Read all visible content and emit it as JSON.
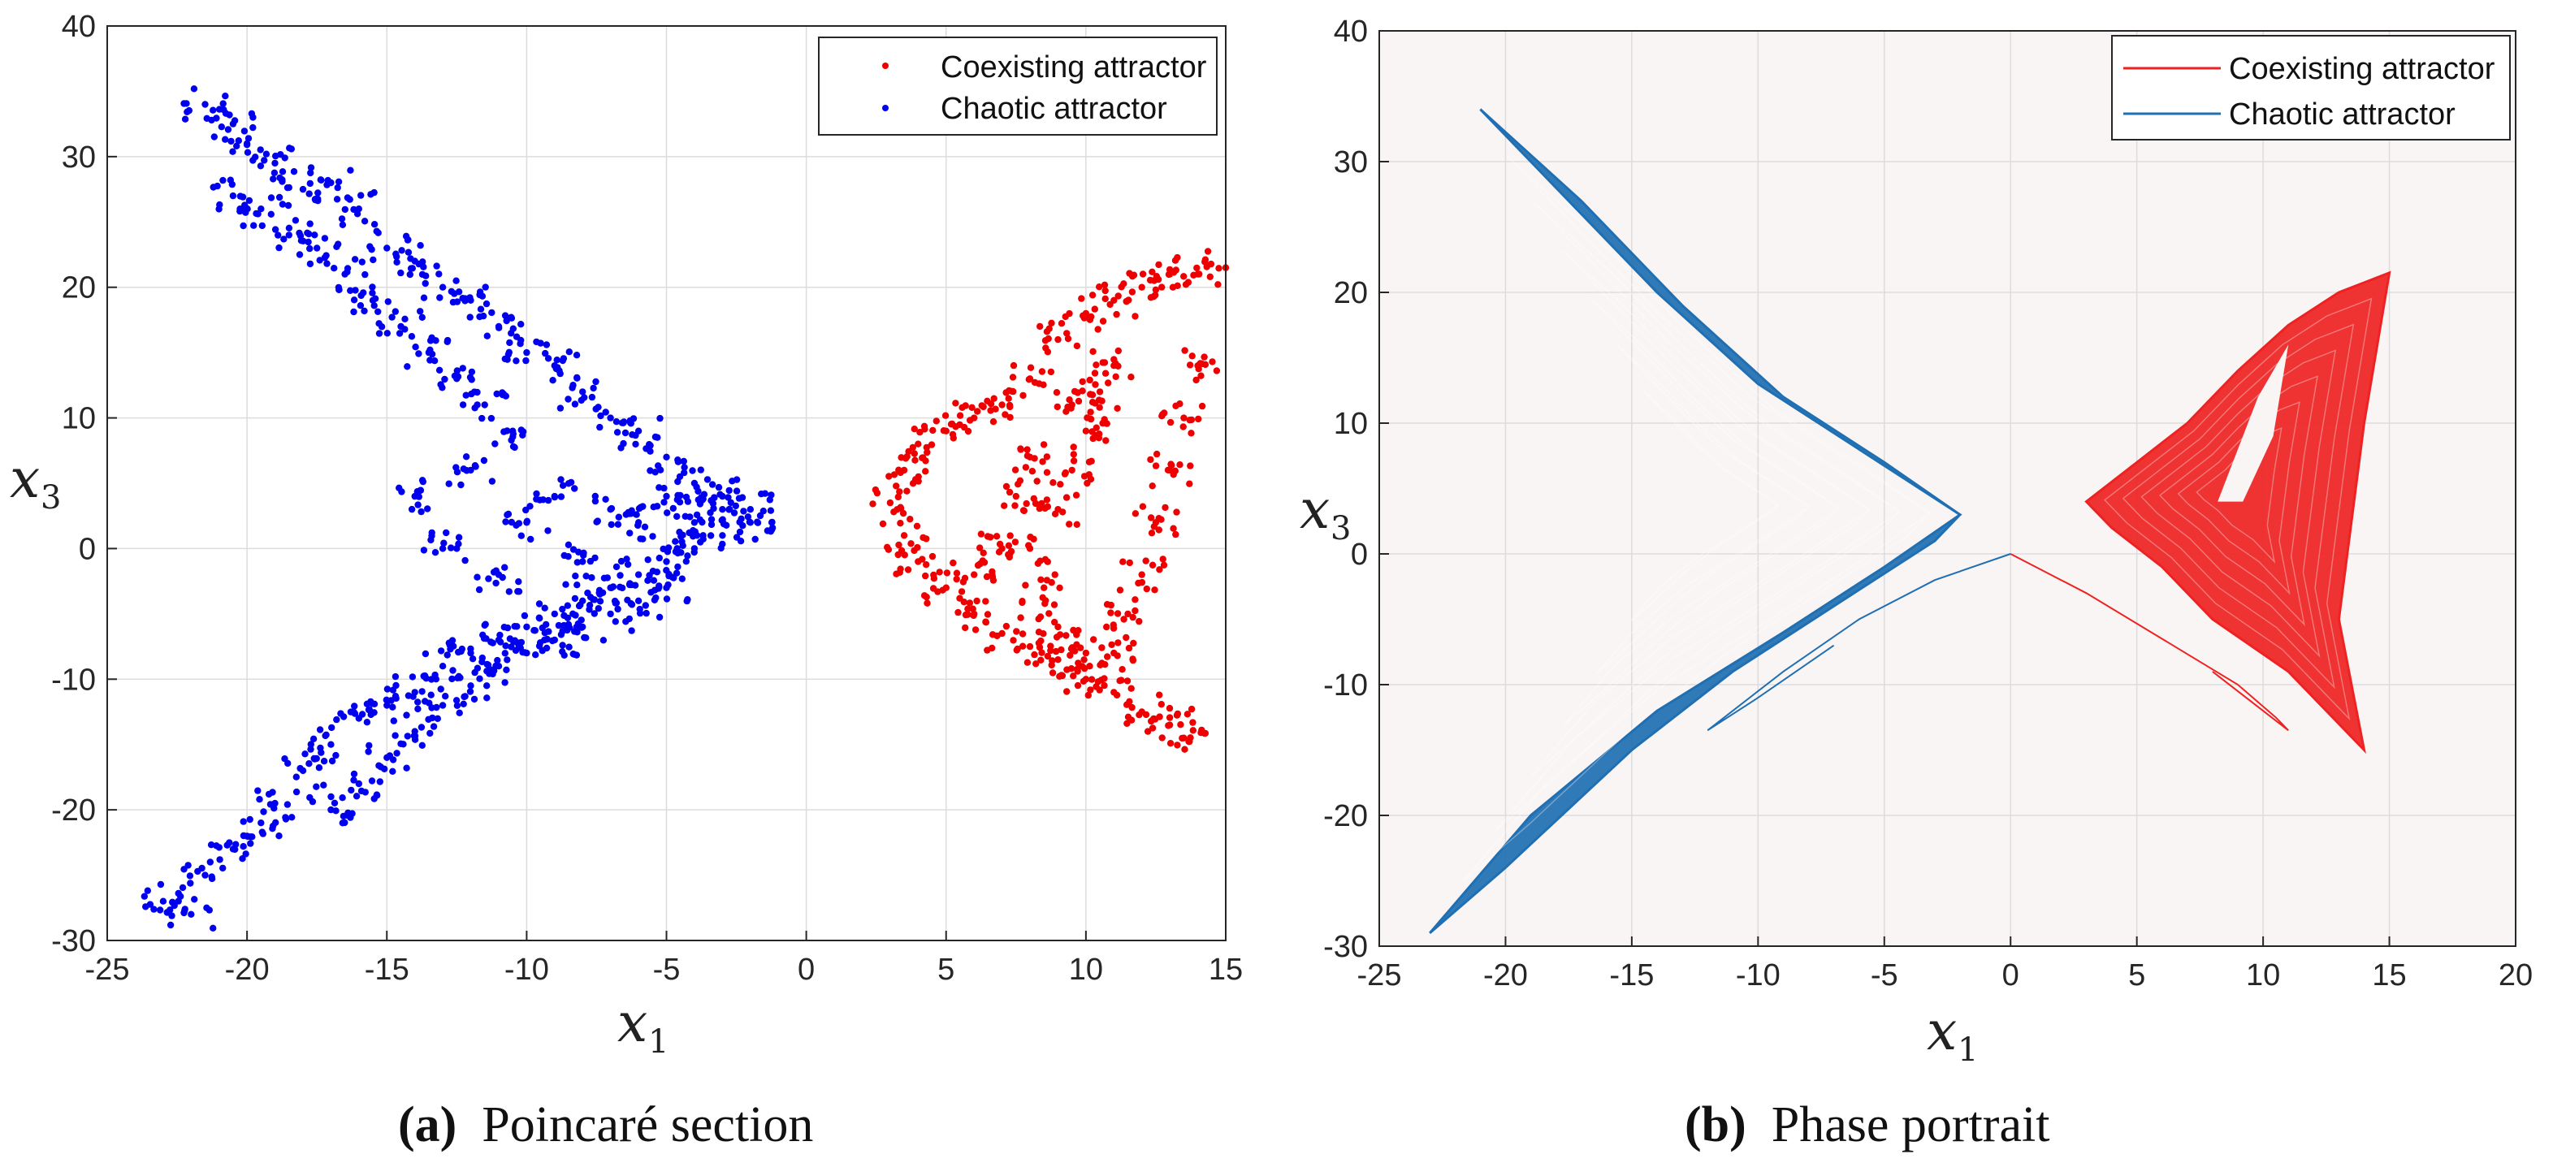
{
  "chart_data": [
    {
      "type": "scatter",
      "title": "",
      "xlabel": "x1",
      "ylabel": "x3",
      "xlim": [
        -25,
        15
      ],
      "ylim": [
        -30,
        40
      ],
      "xticks": [
        "-25",
        "-20",
        "-15",
        "-10",
        "-5",
        "0",
        "5",
        "10",
        "15"
      ],
      "yticks": [
        "-30",
        "-20",
        "-10",
        "0",
        "10",
        "20",
        "30",
        "40"
      ],
      "grid": true,
      "legend_position": "top-right",
      "series": [
        {
          "name": "Coexisting attractor",
          "color": "#ee0000",
          "points": [
            [
              3,
              3.5
            ],
            [
              3.5,
              6
            ],
            [
              4,
              8
            ],
            [
              5,
              9
            ],
            [
              6,
              10
            ],
            [
              7,
              11
            ],
            [
              8,
              13
            ],
            [
              9,
              16
            ],
            [
              10,
              18
            ],
            [
              11,
              19
            ],
            [
              12,
              20
            ],
            [
              13,
              21
            ],
            [
              14,
              21
            ],
            [
              15,
              21.5
            ],
            [
              3.5,
              1
            ],
            [
              4,
              -1
            ],
            [
              5,
              -3
            ],
            [
              6,
              -5
            ],
            [
              7,
              -6.5
            ],
            [
              8,
              -7.5
            ],
            [
              9,
              -8.5
            ],
            [
              10,
              -10
            ],
            [
              11,
              -11
            ],
            [
              12,
              -12.5
            ],
            [
              13,
              -13.5
            ],
            [
              13.5,
              -14.5
            ],
            [
              9,
              3
            ],
            [
              9.5,
              6
            ],
            [
              10,
              9
            ],
            [
              10.5,
              12
            ],
            [
              11,
              14
            ],
            [
              8,
              0
            ],
            [
              8.5,
              -3
            ],
            [
              9,
              -6
            ],
            [
              10,
              -8
            ],
            [
              11,
              -8
            ],
            [
              11.5,
              -5
            ],
            [
              12,
              -2
            ],
            [
              12.5,
              2
            ],
            [
              13,
              6
            ],
            [
              13.5,
              10
            ],
            [
              14,
              14
            ],
            [
              6,
              -2
            ],
            [
              7,
              0
            ],
            [
              7.5,
              4
            ],
            [
              8,
              7
            ],
            [
              9.5,
              11
            ]
          ]
        },
        {
          "name": "Chaotic attractor",
          "color": "#0000ee",
          "points": [
            [
              -21.5,
              34
            ],
            [
              -20.5,
              32.5
            ],
            [
              -20,
              31
            ],
            [
              -19,
              29.5
            ],
            [
              -18,
              27.5
            ],
            [
              -17,
              28
            ],
            [
              -16,
              26
            ],
            [
              -15,
              23
            ],
            [
              -14,
              22
            ],
            [
              -13,
              20
            ],
            [
              -12,
              19
            ],
            [
              -11,
              17
            ],
            [
              -10,
              15
            ],
            [
              -9,
              14
            ],
            [
              -8,
              12
            ],
            [
              -7,
              10
            ],
            [
              -6,
              9
            ],
            [
              -5,
              7
            ],
            [
              -4,
              5
            ],
            [
              -3,
              4
            ],
            [
              -2,
              3
            ],
            [
              -20.5,
              27
            ],
            [
              -19.5,
              26
            ],
            [
              -18.5,
              24
            ],
            [
              -17.5,
              23
            ],
            [
              -16.5,
              21
            ],
            [
              -15.5,
              19
            ],
            [
              -14.5,
              17
            ],
            [
              -13.5,
              15
            ],
            [
              -12.5,
              13
            ],
            [
              -11.5,
              11
            ],
            [
              -10.5,
              9
            ],
            [
              -23,
              -27
            ],
            [
              -22,
              -28
            ],
            [
              -21.5,
              -25
            ],
            [
              -20.5,
              -23
            ],
            [
              -19.5,
              -21
            ],
            [
              -19,
              -19.5
            ],
            [
              -18,
              -17
            ],
            [
              -17,
              -15
            ],
            [
              -16,
              -13
            ],
            [
              -15,
              -12
            ],
            [
              -14,
              -11
            ],
            [
              -13,
              -9
            ],
            [
              -12,
              -8
            ],
            [
              -11,
              -7
            ],
            [
              -10,
              -6
            ],
            [
              -9,
              -5
            ],
            [
              -8,
              -4
            ],
            [
              -7,
              -3
            ],
            [
              -6,
              -2
            ],
            [
              -5,
              -1
            ],
            [
              -4,
              0
            ],
            [
              -3,
              1
            ],
            [
              -2,
              2
            ],
            [
              -17,
              -20
            ],
            [
              -16,
              -18
            ],
            [
              -15,
              -16
            ],
            [
              -14,
              -14
            ],
            [
              -13,
              -12
            ],
            [
              -12,
              -10.5
            ],
            [
              -11,
              -9
            ],
            [
              -10,
              -8
            ],
            [
              -9,
              -7
            ],
            [
              -8,
              -6
            ],
            [
              -7,
              -5
            ],
            [
              -6,
              -4
            ],
            [
              -5,
              -3
            ],
            [
              -13,
              0
            ],
            [
              -14,
              4
            ],
            [
              -12,
              6
            ],
            [
              -11,
              -2
            ],
            [
              -10,
              2
            ],
            [
              -9,
              4
            ],
            [
              -8,
              -1
            ],
            [
              -7,
              3
            ],
            [
              -6,
              2
            ],
            [
              -5,
              4
            ],
            [
              -4,
              2
            ],
            [
              -3,
              3
            ]
          ]
        }
      ]
    },
    {
      "type": "line",
      "title": "",
      "xlabel": "x1",
      "ylabel": "x3",
      "xlim": [
        -25,
        20
      ],
      "ylim": [
        -30,
        40
      ],
      "xticks": [
        "-25",
        "-20",
        "-15",
        "-10",
        "-5",
        "0",
        "5",
        "10",
        "15",
        "20"
      ],
      "yticks": [
        "-30",
        "-20",
        "-10",
        "0",
        "10",
        "20",
        "30",
        "40"
      ],
      "grid": true,
      "legend_position": "top-right",
      "series": [
        {
          "name": "Coexisting attractor",
          "color": "#ee2222",
          "path": [
            [
              3,
              4
            ],
            [
              5,
              7
            ],
            [
              7,
              10
            ],
            [
              9,
              14
            ],
            [
              11,
              17.5
            ],
            [
              13,
              20
            ],
            [
              15,
              21.5
            ],
            [
              14,
              10
            ],
            [
              13,
              -5
            ],
            [
              14,
              -15
            ],
            [
              11,
              -9
            ],
            [
              8,
              -5
            ],
            [
              6,
              -1
            ],
            [
              4,
              2
            ],
            [
              3,
              4
            ]
          ],
          "transient": [
            [
              0,
              0
            ],
            [
              3,
              -3
            ],
            [
              6,
              -6.5
            ],
            [
              9,
              -10
            ],
            [
              10.5,
              -12.5
            ],
            [
              11,
              -13.5
            ],
            [
              10,
              -12
            ],
            [
              8,
              -9
            ]
          ]
        },
        {
          "name": "Chaotic attractor",
          "color": "#1f6fb2",
          "path": [
            [
              -21,
              34
            ],
            [
              -17,
              27
            ],
            [
              -13,
              19
            ],
            [
              -9,
              12
            ],
            [
              -5,
              7
            ],
            [
              -2,
              3
            ],
            [
              -5,
              -1
            ],
            [
              -9,
              -6
            ],
            [
              -14,
              -12
            ],
            [
              -19,
              -20
            ],
            [
              -23,
              -29
            ],
            [
              -20,
              -24
            ],
            [
              -15,
              -15
            ],
            [
              -11,
              -9
            ],
            [
              -7,
              -4
            ],
            [
              -3,
              1
            ],
            [
              -2,
              3
            ],
            [
              -6,
              8
            ],
            [
              -10,
              13
            ],
            [
              -14,
              20
            ],
            [
              -18,
              28
            ],
            [
              -21,
              34
            ]
          ],
          "transient": [
            [
              0,
              0
            ],
            [
              -3,
              -2
            ],
            [
              -6,
              -5
            ],
            [
              -9,
              -9
            ],
            [
              -11,
              -12
            ],
            [
              -12,
              -13.5
            ],
            [
              -10,
              -11
            ],
            [
              -7,
              -7
            ]
          ]
        }
      ]
    }
  ],
  "captions": [
    {
      "label": "(a)",
      "text": "Poincaré section"
    },
    {
      "label": "(b)",
      "text": "Phase portrait"
    }
  ],
  "legend": {
    "coexisting": "Coexisting attractor",
    "chaotic": "Chaotic attractor"
  },
  "axis_names": {
    "x": "x",
    "x_sub": "1",
    "y": "x",
    "y_sub": "3"
  }
}
